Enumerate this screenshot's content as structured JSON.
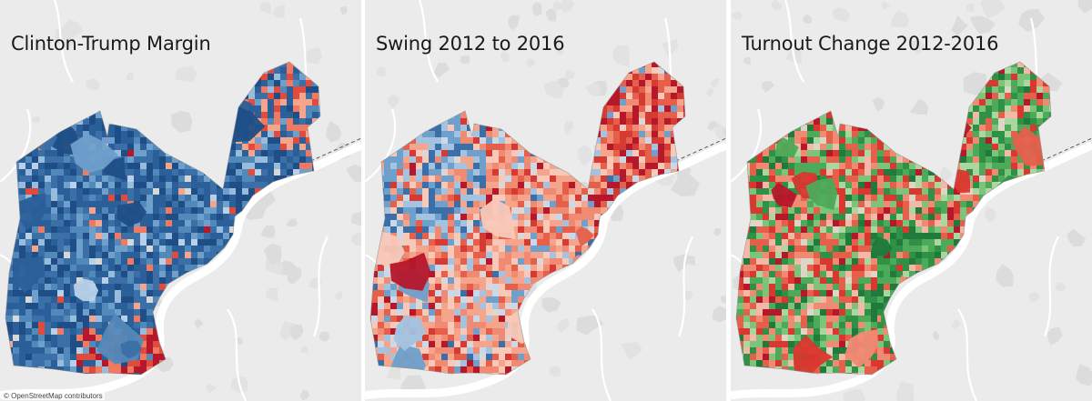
{
  "panels": [
    {
      "title": "Clinton-Trump Margin",
      "palette": [
        "#1f4e86",
        "#2a5f99",
        "#3a6fa8",
        "#5289bb",
        "#6f9fcb",
        "#98bcdc",
        "#b9d1e8",
        "#d7d7d7",
        "#f6a58d",
        "#f07961",
        "#e24a3b",
        "#b5172b"
      ],
      "weights": [
        18,
        26,
        22,
        14,
        8,
        5,
        3,
        1,
        1,
        1,
        1,
        0.4
      ]
    },
    {
      "title": "Swing 2012 to 2016",
      "palette": [
        "#3a6fa8",
        "#6f9fcb",
        "#a3c3e1",
        "#c9d9ea",
        "#dcd7d4",
        "#f8c9b9",
        "#f6a58d",
        "#f08a73",
        "#e65f4b",
        "#d63a33",
        "#b5172b"
      ],
      "weights": [
        2,
        5,
        7,
        6,
        4,
        14,
        18,
        16,
        10,
        6,
        4
      ]
    },
    {
      "title": "Turnout Change 2012-2016",
      "palette": [
        "#1f7a3b",
        "#2f9146",
        "#4caa58",
        "#7cc47a",
        "#aad7a0",
        "#ddd6c6",
        "#f4b8a8",
        "#f08a73",
        "#e65f4b",
        "#d9372f",
        "#b5172b"
      ],
      "weights": [
        6,
        9,
        10,
        9,
        6,
        3,
        6,
        11,
        13,
        11,
        4
      ]
    }
  ],
  "attribution": "© OpenStreetMap contributors"
}
